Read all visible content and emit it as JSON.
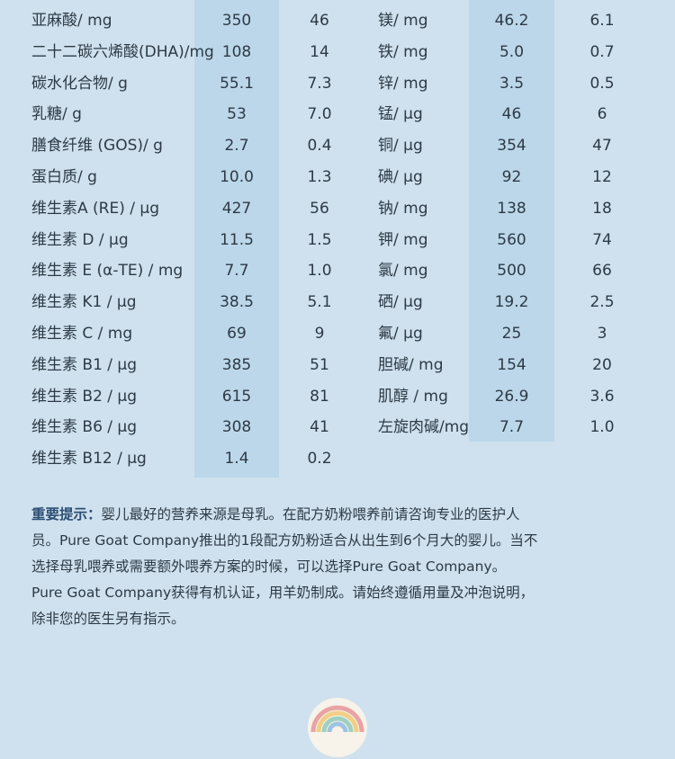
{
  "table_left": [
    {
      "name": "亚麻酸/ mg",
      "v1": "350",
      "v2": "46"
    },
    {
      "name": "二十二碳六烯酸(DHA)/mg",
      "v1": "108",
      "v2": "14"
    },
    {
      "name": "碳水化合物/ g",
      "v1": "55.1",
      "v2": "7.3"
    },
    {
      "name": "乳糖/ g",
      "v1": "53",
      "v2": "7.0"
    },
    {
      "name": "膳食纤维 (GOS)/ g",
      "v1": "2.7",
      "v2": "0.4"
    },
    {
      "name": "蛋白质/ g",
      "v1": "10.0",
      "v2": "1.3"
    },
    {
      "name": "维生素A (RE) /  μg",
      "v1": "427",
      "v2": "56"
    },
    {
      "name": "维生素 D / μg",
      "v1": "11.5",
      "v2": "1.5"
    },
    {
      "name": "维生素 E (α-TE) / mg",
      "v1": "7.7",
      "v2": "1.0"
    },
    {
      "name": "维生素 K1 / μg",
      "v1": "38.5",
      "v2": "5.1"
    },
    {
      "name": "维生素 C / mg",
      "v1": "69",
      "v2": "9"
    },
    {
      "name": "维生素 B1 / μg",
      "v1": "385",
      "v2": "51"
    },
    {
      "name": "维生素 B2 / μg",
      "v1": "615",
      "v2": "81"
    },
    {
      "name": "维生素 B6 / μg",
      "v1": "308",
      "v2": "41"
    },
    {
      "name": "维生素 B12 / μg",
      "v1": "1.4",
      "v2": "0.2"
    }
  ],
  "table_right": [
    {
      "name": "镁/ mg",
      "v1": "46.2",
      "v2": "6.1"
    },
    {
      "name": "铁/ mg",
      "v1": "5.0",
      "v2": "0.7"
    },
    {
      "name": "锌/ mg",
      "v1": "3.5",
      "v2": "0.5"
    },
    {
      "name": "锰/ μg",
      "v1": "46",
      "v2": "6"
    },
    {
      "name": "铜/ μg",
      "v1": "354",
      "v2": "47"
    },
    {
      "name": "碘/ μg",
      "v1": "92",
      "v2": "12"
    },
    {
      "name": "钠/ mg",
      "v1": "138",
      "v2": "18"
    },
    {
      "name": "钾/ mg",
      "v1": "560",
      "v2": "74"
    },
    {
      "name": "氯/ mg",
      "v1": "500",
      "v2": "66"
    },
    {
      "name": "硒/ μg",
      "v1": "19.2",
      "v2": "2.5"
    },
    {
      "name": "氟/ μg",
      "v1": "25",
      "v2": "3"
    },
    {
      "name": "胆碱/ mg",
      "v1": "154",
      "v2": "20"
    },
    {
      "name": "肌醇 / mg",
      "v1": "26.9",
      "v2": "3.6"
    },
    {
      "name": "左旋肉碱/mg",
      "v1": "7.7",
      "v2": "1.0"
    }
  ],
  "notice": {
    "label": "重要提示：",
    "lines": [
      "婴儿最好的营养来源是母乳。在配方奶粉喂养前请咨询专业的医护人",
      "员。Pure Goat Company推出的1段配方奶粉适合从出生到6个月大的婴儿。当不",
      "选择母乳喂养或需要额外喂养方案的时候，可以选择Pure Goat Company。",
      "Pure Goat Company获得有机认证，用羊奶制成。请始终遵循用量及冲泡说明，",
      "除非您的医生另有指示。"
    ]
  },
  "colors": {
    "background": "#cfe1ee",
    "column_band": "#bcd7ea",
    "text": "#2d3a46",
    "label": "#2c4f73"
  },
  "logo": {
    "icon": "rainbow-logo-icon"
  }
}
